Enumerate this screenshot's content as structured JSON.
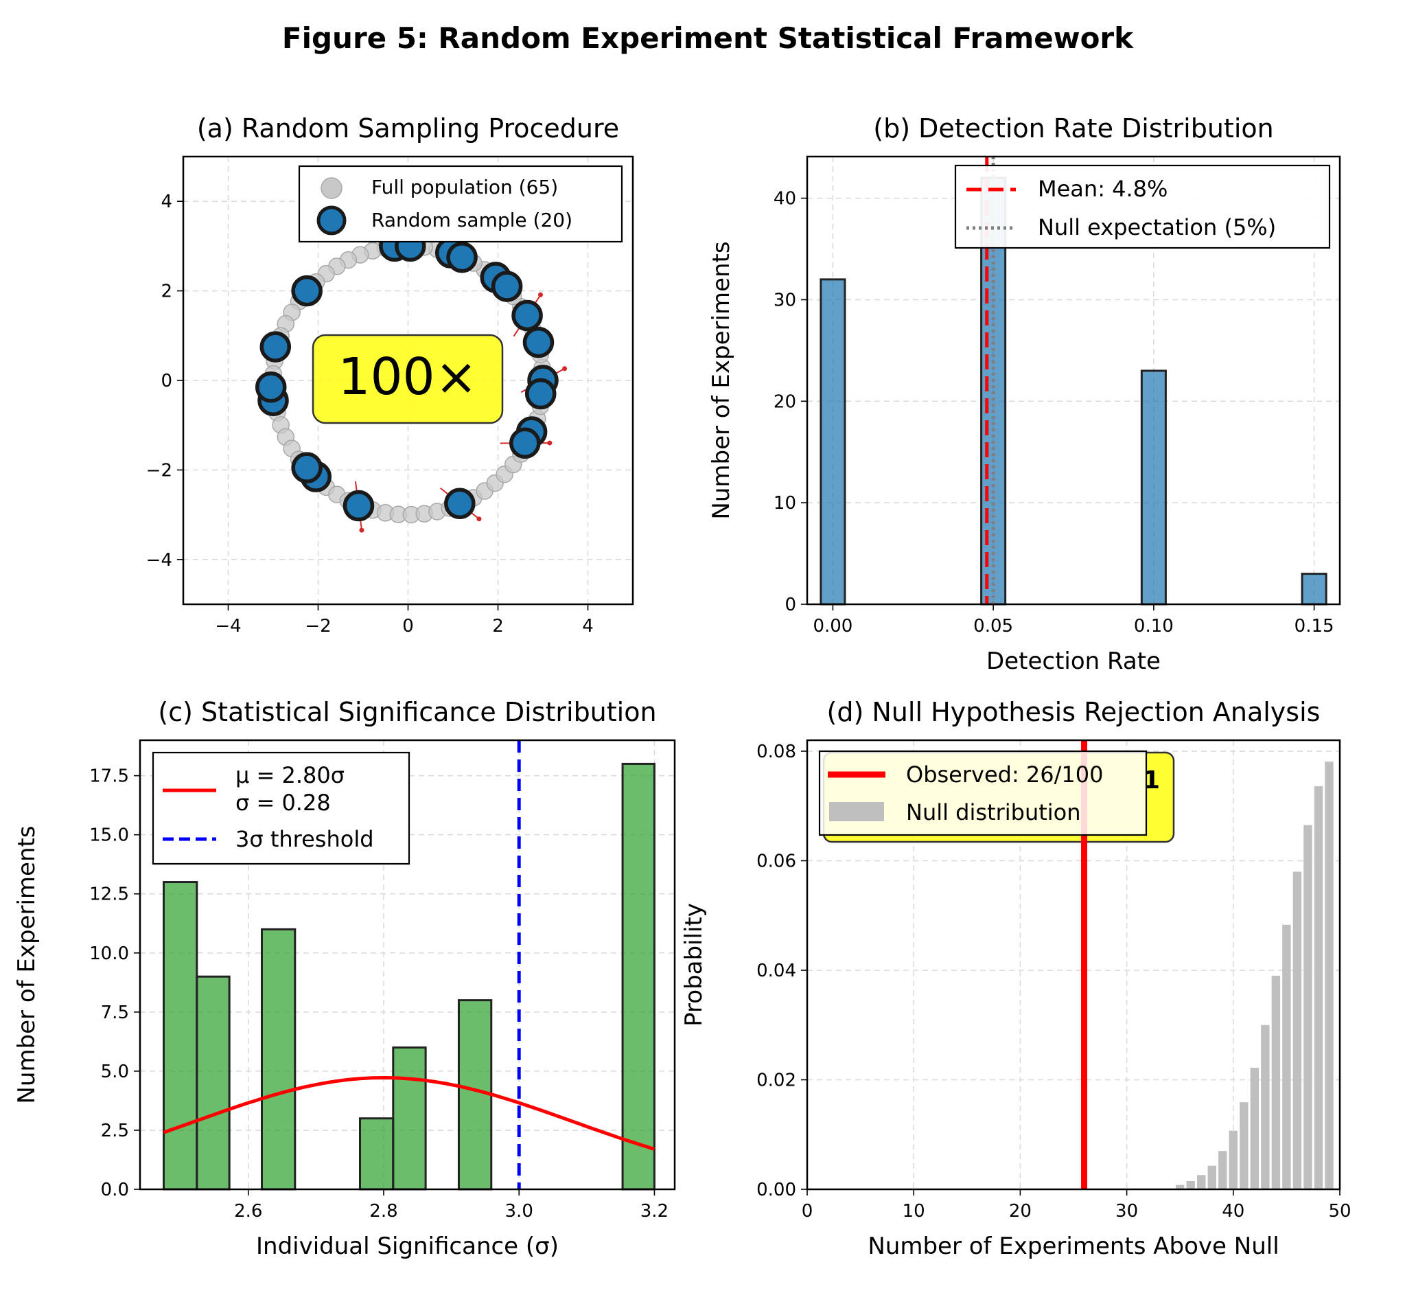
{
  "figure_title": "Figure 5: Random Experiment Statistical Framework",
  "colors": {
    "blue": "#1f77b4",
    "green": "#2ca02c",
    "red": "#ff0000",
    "navy": "#0000ff",
    "gray": "#bfbfbf",
    "highlight": "#ffff00"
  },
  "chart_data": [
    {
      "panel": "a",
      "type": "scatter",
      "title": "(a) Random Sampling Procedure",
      "xlim": [
        -5,
        5
      ],
      "ylim": [
        -5,
        5
      ],
      "xticks": [
        -4,
        -2,
        0,
        2,
        4
      ],
      "yticks": [
        -4,
        -2,
        0,
        2,
        4
      ],
      "grid": true,
      "legend_placement": "top-right",
      "annotation": "100×",
      "population": {
        "name": "Full population (65)",
        "count": 65,
        "radius": 3.0,
        "layout": "circle"
      },
      "sample": {
        "name": "Random sample (20)",
        "points": [
          [
            -0.3,
            3.0
          ],
          [
            0.05,
            3.0
          ],
          [
            0.95,
            2.85
          ],
          [
            1.2,
            2.75
          ],
          [
            1.95,
            2.3
          ],
          [
            2.2,
            2.1
          ],
          [
            2.65,
            1.45
          ],
          [
            2.9,
            0.85
          ],
          [
            3.0,
            0.0
          ],
          [
            2.95,
            -0.3
          ],
          [
            2.75,
            -1.15
          ],
          [
            2.6,
            -1.4
          ],
          [
            1.15,
            -2.75
          ],
          [
            -1.1,
            -2.8
          ],
          [
            -2.05,
            -2.15
          ],
          [
            -2.25,
            -1.95
          ],
          [
            -3.0,
            -0.45
          ],
          [
            -3.05,
            -0.15
          ],
          [
            -2.95,
            0.75
          ],
          [
            -2.25,
            2.0
          ]
        ],
        "arrows": [
          [
            2.65,
            1.45
          ],
          [
            3.0,
            0.0
          ],
          [
            2.6,
            -1.4
          ],
          [
            1.15,
            -2.75
          ],
          [
            -1.1,
            -2.8
          ]
        ]
      }
    },
    {
      "panel": "b",
      "type": "bar",
      "title": "(b) Detection Rate Distribution",
      "xlabel": "Detection Rate",
      "ylabel": "Number of Experiments",
      "xlim": [
        -0.008,
        0.158
      ],
      "ylim": [
        0,
        44.1
      ],
      "xticks": [
        "0.00",
        "0.05",
        "0.10",
        "0.15"
      ],
      "yticks": [
        0,
        10,
        20,
        30,
        40
      ],
      "grid": true,
      "legend_placement": "top-right",
      "bars": [
        {
          "x": 0.0,
          "value": 32
        },
        {
          "x": 0.05,
          "value": 42
        },
        {
          "x": 0.1,
          "value": 23
        },
        {
          "x": 0.15,
          "value": 3
        }
      ],
      "bin_width": 0.0075,
      "mean_line": {
        "x": 0.048,
        "label": "Mean: 4.8%"
      },
      "null_line": {
        "x": 0.05,
        "label": "Null expectation (5%)"
      }
    },
    {
      "panel": "c",
      "type": "bar",
      "title": "(c) Statistical Significance Distribution",
      "xlabel": "Individual Significance (σ)",
      "ylabel": "Number of Experiments",
      "xlim": [
        2.44,
        3.23
      ],
      "ylim": [
        0,
        19
      ],
      "xticks": [
        "2.6",
        "2.8",
        "3.0",
        "3.2"
      ],
      "yticks": [
        "0.0",
        "2.5",
        "5.0",
        "7.5",
        "10.0",
        "12.5",
        "15.0",
        "17.5"
      ],
      "grid": true,
      "legend_placement": "top-left",
      "bins": [
        {
          "x0": 2.475,
          "x1": 2.524,
          "value": 13
        },
        {
          "x0": 2.524,
          "x1": 2.572,
          "value": 9
        },
        {
          "x0": 2.62,
          "x1": 2.669,
          "value": 11
        },
        {
          "x0": 2.765,
          "x1": 2.814,
          "value": 3
        },
        {
          "x0": 2.814,
          "x1": 2.862,
          "value": 6
        },
        {
          "x0": 2.911,
          "x1": 2.959,
          "value": 8
        },
        {
          "x0": 3.153,
          "x1": 3.2,
          "value": 18
        }
      ],
      "fit": {
        "mu": 2.8,
        "sigma": 0.28,
        "scale": 4.72,
        "label_mu": "μ = 2.80σ",
        "label_sigma": "σ = 0.28"
      },
      "threshold": {
        "x": 3.0,
        "label": "3σ threshold"
      }
    },
    {
      "panel": "d",
      "type": "bar",
      "title": "(d) Null Hypothesis Rejection Analysis",
      "xlabel": "Number of Experiments Above Null",
      "ylabel": "Probability",
      "xlim": [
        0,
        50
      ],
      "ylim": [
        0,
        0.082
      ],
      "xticks": [
        0,
        10,
        20,
        30,
        40,
        50
      ],
      "yticks": [
        "0.00",
        "0.02",
        "0.04",
        "0.06",
        "0.08"
      ],
      "grid": true,
      "legend_placement": "top-left",
      "null_bars": [
        {
          "x": 35,
          "value": 0.0008
        },
        {
          "x": 36,
          "value": 0.0015
        },
        {
          "x": 37,
          "value": 0.0026
        },
        {
          "x": 38,
          "value": 0.0043
        },
        {
          "x": 39,
          "value": 0.007
        },
        {
          "x": 40,
          "value": 0.0107
        },
        {
          "x": 41,
          "value": 0.0159
        },
        {
          "x": 42,
          "value": 0.0222
        },
        {
          "x": 43,
          "value": 0.03
        },
        {
          "x": 44,
          "value": 0.039
        },
        {
          "x": 45,
          "value": 0.0483
        },
        {
          "x": 46,
          "value": 0.058
        },
        {
          "x": 47,
          "value": 0.0665
        },
        {
          "x": 48,
          "value": 0.0736
        },
        {
          "x": 49,
          "value": 0.0781
        }
      ],
      "observed": {
        "x": 26,
        "label": "Observed: 26/100"
      },
      "null_label": "Null distribution",
      "box_fragment": "1"
    }
  ]
}
